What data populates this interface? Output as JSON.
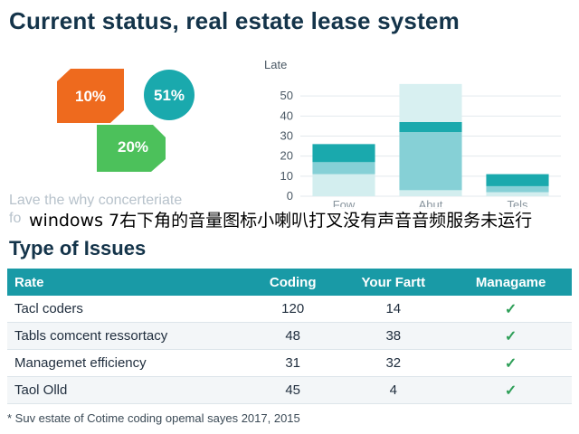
{
  "page": {
    "title": "Current status, real estate lease system",
    "section_title": "Type of Issues",
    "footnote": "* Suv estate of Cotime coding opemal sayes 2017, 2015"
  },
  "shapes": [
    {
      "label": "10%",
      "color": "#ee6a1e"
    },
    {
      "label": "51%",
      "color": "#1aa9ad"
    },
    {
      "label": "20%",
      "color": "#4cc15b"
    }
  ],
  "ghost_text": {
    "line1": "Lave the why concerteriate",
    "line2": "fo"
  },
  "overlay_text": "windows 7右下角的音量图标小喇叭打叉没有声音音频服务未运行",
  "chart_data": {
    "type": "bar",
    "ylabel": "Late",
    "ylim": [
      0,
      60
    ],
    "yticks": [
      0,
      10,
      20,
      30,
      40,
      50
    ],
    "categories": [
      "Fow",
      "Abut",
      "Tels"
    ],
    "series": [
      {
        "values": [
          11,
          3,
          2
        ],
        "color": "#d3eeef"
      },
      {
        "values": [
          6,
          29,
          3
        ],
        "color": "#86d0d6"
      },
      {
        "values": [
          9,
          5,
          6
        ],
        "color": "#1aa9ad"
      },
      {
        "values": [
          0,
          19,
          0
        ],
        "color": "#d8f0f1"
      }
    ]
  },
  "table": {
    "columns": [
      "Rate",
      "Coding",
      "Your Fartt",
      "Managame"
    ],
    "rows": [
      {
        "name": "Tacl coders",
        "coding": "120",
        "other": "14",
        "mark": "✓"
      },
      {
        "name": "Tabls comcent ressortacy",
        "coding": "48",
        "other": "38",
        "mark": "✓"
      },
      {
        "name": "Managemet efficiency",
        "coding": "31",
        "other": "32",
        "mark": "✓"
      },
      {
        "name": "Taol Olld",
        "coding": "45",
        "other": "4",
        "mark": "✓"
      }
    ]
  },
  "colors": {
    "header_bg": "#199aa6",
    "title": "#14344a",
    "check": "#2e9f58"
  }
}
